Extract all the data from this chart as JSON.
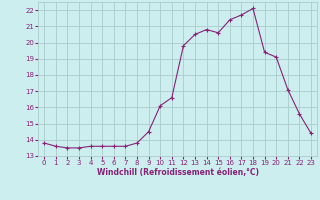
{
  "x": [
    0,
    1,
    2,
    3,
    4,
    5,
    6,
    7,
    8,
    9,
    10,
    11,
    12,
    13,
    14,
    15,
    16,
    17,
    18,
    19,
    20,
    21,
    22,
    23
  ],
  "y": [
    13.8,
    13.6,
    13.5,
    13.5,
    13.6,
    13.6,
    13.6,
    13.6,
    13.8,
    14.5,
    16.1,
    16.6,
    19.8,
    20.5,
    20.8,
    20.6,
    21.4,
    21.7,
    22.1,
    19.4,
    19.1,
    17.1,
    15.6,
    14.4
  ],
  "line_color": "#882277",
  "marker": "+",
  "bg_color": "#cceeee",
  "grid_color": "#aacccc",
  "tick_color": "#882277",
  "label_color": "#882277",
  "xlabel": "Windchill (Refroidissement éolien,°C)",
  "ylim": [
    13,
    22.5
  ],
  "xlim": [
    -0.5,
    23.5
  ],
  "yticks": [
    13,
    14,
    15,
    16,
    17,
    18,
    19,
    20,
    21,
    22
  ],
  "xticks": [
    0,
    1,
    2,
    3,
    4,
    5,
    6,
    7,
    8,
    9,
    10,
    11,
    12,
    13,
    14,
    15,
    16,
    17,
    18,
    19,
    20,
    21,
    22,
    23
  ],
  "tick_fontsize": 5.0,
  "xlabel_fontsize": 5.5
}
